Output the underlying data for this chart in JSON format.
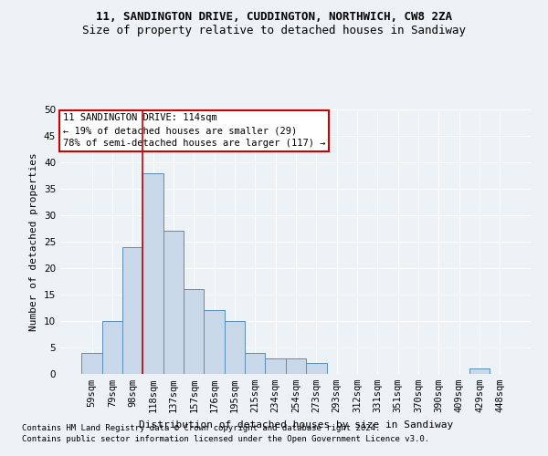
{
  "title": "11, SANDINGTON DRIVE, CUDDINGTON, NORTHWICH, CW8 2ZA",
  "subtitle": "Size of property relative to detached houses in Sandiway",
  "xlabel": "Distribution of detached houses by size in Sandiway",
  "ylabel": "Number of detached properties",
  "footnote1": "Contains HM Land Registry data © Crown copyright and database right 2024.",
  "footnote2": "Contains public sector information licensed under the Open Government Licence v3.0.",
  "annotation_line1": "11 SANDINGTON DRIVE: 114sqm",
  "annotation_line2": "← 19% of detached houses are smaller (29)",
  "annotation_line3": "78% of semi-detached houses are larger (117) →",
  "bar_color": "#c8d8e8",
  "bar_edge_color": "#5b8db8",
  "ref_line_color": "#cc0000",
  "annotation_box_edge_color": "#cc0000",
  "background_color": "#edf2f7",
  "grid_color": "#ffffff",
  "categories": [
    "59sqm",
    "79sqm",
    "98sqm",
    "118sqm",
    "137sqm",
    "157sqm",
    "176sqm",
    "195sqm",
    "215sqm",
    "234sqm",
    "254sqm",
    "273sqm",
    "293sqm",
    "312sqm",
    "331sqm",
    "351sqm",
    "370sqm",
    "390sqm",
    "409sqm",
    "429sqm",
    "448sqm"
  ],
  "values": [
    4,
    10,
    24,
    38,
    27,
    16,
    12,
    10,
    4,
    3,
    3,
    2,
    0,
    0,
    0,
    0,
    0,
    0,
    0,
    1,
    0
  ],
  "ylim": [
    0,
    50
  ],
  "yticks": [
    0,
    5,
    10,
    15,
    20,
    25,
    30,
    35,
    40,
    45,
    50
  ],
  "ref_line_index": 3,
  "title_fontsize": 9,
  "subtitle_fontsize": 9,
  "axis_label_fontsize": 8,
  "tick_fontsize": 7.5,
  "annotation_fontsize": 7.5,
  "footnote_fontsize": 6.5
}
